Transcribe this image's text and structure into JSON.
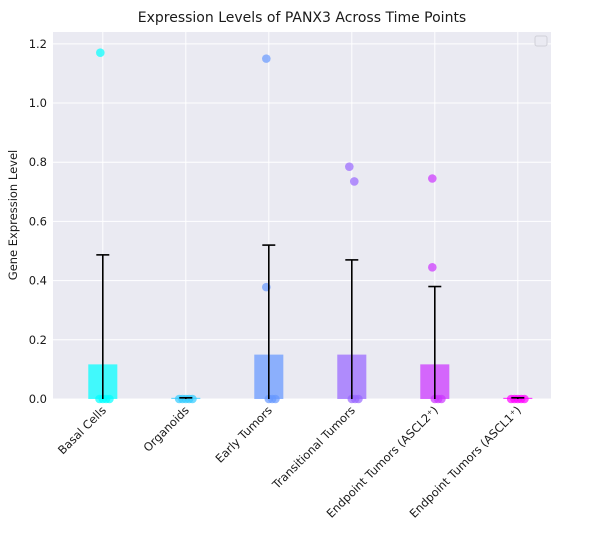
{
  "chart_data": {
    "type": "bar",
    "title": "Expression Levels of PANX3 Across Time Points",
    "xlabel": "",
    "ylabel": "Gene Expression Level",
    "ylim": [
      0,
      1.24
    ],
    "yticks": [
      "0.0",
      "0.2",
      "0.4",
      "0.6",
      "0.8",
      "1.0",
      "1.2"
    ],
    "grid": true,
    "legend": "top-right (empty)",
    "categories": [
      "Basal Cells",
      "Organoids",
      "Early Tumors",
      "Transitional Tumors",
      "Endpoint Tumors (ASCL2⁺)",
      "Endpoint Tumors (ASCL1⁺)"
    ],
    "values": [
      0.117,
      0.004,
      0.15,
      0.15,
      0.117,
      0.004
    ],
    "error": [
      0.37,
      0.0,
      0.37,
      0.32,
      0.263,
      0.0
    ],
    "colors": [
      "#00ffff",
      "#33ccff",
      "#6699ff",
      "#9966ff",
      "#cc33ff",
      "#ff00ff"
    ],
    "points": [
      [
        1.17,
        0.0,
        0.0,
        0.0,
        0.0
      ],
      [
        0.0,
        0.0,
        0.0,
        0.0,
        0.0
      ],
      [
        1.15,
        0.378,
        0.0,
        0.0,
        0.0
      ],
      [
        0.785,
        0.735,
        0.0,
        0.0,
        0.0
      ],
      [
        0.745,
        0.445,
        0.0,
        0.0,
        0.0
      ],
      [
        0.0,
        0.0,
        0.0,
        0.0,
        0.0
      ]
    ]
  }
}
